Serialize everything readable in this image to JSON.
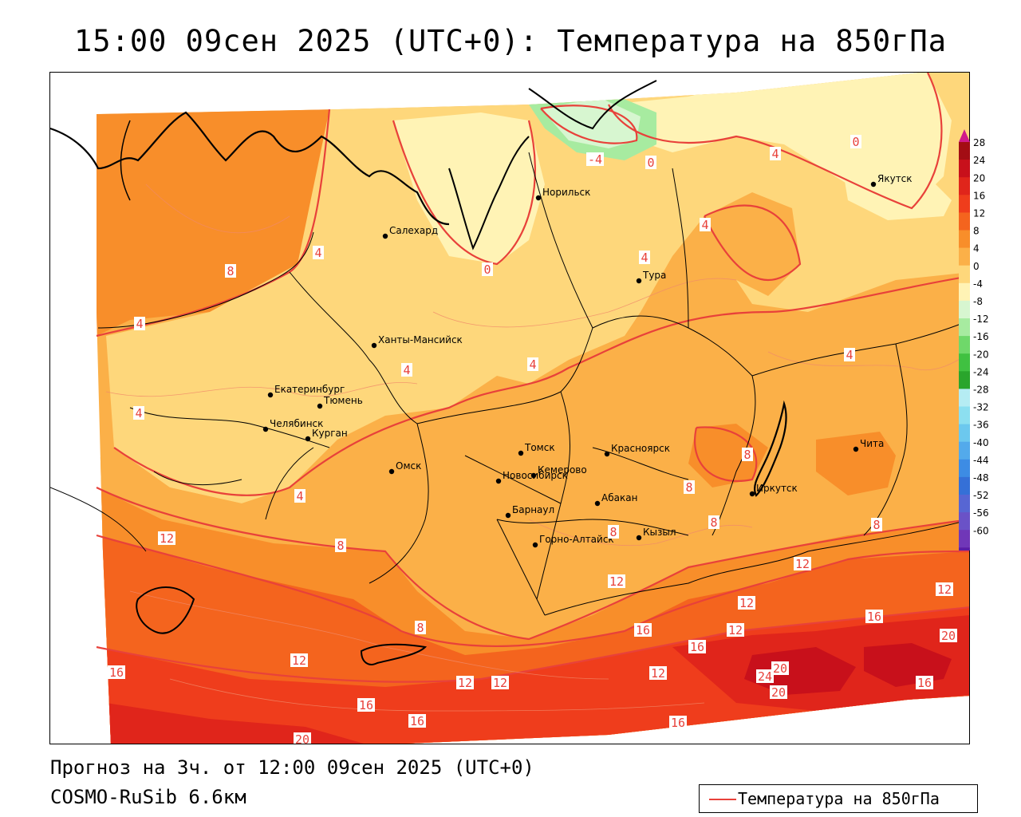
{
  "title": "15:00 09сен 2025 (UTC+0): Температура на 850гПа",
  "footer": {
    "forecast": "Прогноз на 3ч. от 12:00 09сен 2025 (UTC+0)",
    "model": "COSMO-RuSib 6.6км"
  },
  "legend": {
    "label": "Температура на 850гПа",
    "line_color": "#e8413a"
  },
  "colorbar": {
    "ticks": [
      "28",
      "24",
      "20",
      "16",
      "12",
      "8",
      "4",
      "0",
      "-4",
      "-8",
      "-12",
      "-16",
      "-20",
      "-24",
      "-28",
      "-32",
      "-36",
      "-40",
      "-44",
      "-48",
      "-52",
      "-56",
      "-60"
    ],
    "colors": [
      "#a30d14",
      "#c8101b",
      "#e0251b",
      "#ef3d1c",
      "#f4641e",
      "#f88e2a",
      "#fbb048",
      "#fed77b",
      "#fff3b5",
      "#d7f6d0",
      "#a7eba0",
      "#6fd86a",
      "#40c141",
      "#2aa52c",
      "#b5ecf3",
      "#8cdff0",
      "#6cc8ee",
      "#53aaeb",
      "#3d8ce4",
      "#3570d7",
      "#5766d3",
      "#6a52c7",
      "#7037b8",
      "#5b1da6",
      "#3b0e8f"
    ],
    "arrow_top_color": "#d01a8a",
    "arrow_bottom_color": "#8a2bd0"
  },
  "map": {
    "cities": [
      {
        "name": "Якутск"
      },
      {
        "name": "Норильск"
      },
      {
        "name": "Салехард"
      },
      {
        "name": "Тура"
      },
      {
        "name": "Ханты-Мансийск"
      },
      {
        "name": "Екатеринбург"
      },
      {
        "name": "Тюмень"
      },
      {
        "name": "Челябинск"
      },
      {
        "name": "Курган"
      },
      {
        "name": "Томск"
      },
      {
        "name": "Красноярск"
      },
      {
        "name": "Омск"
      },
      {
        "name": "Новосибирск"
      },
      {
        "name": "Кемерово"
      },
      {
        "name": "Барнаул"
      },
      {
        "name": "Абакан"
      },
      {
        "name": "Иркутск"
      },
      {
        "name": "Чита"
      },
      {
        "name": "Горно-Алтайск"
      },
      {
        "name": "Кызыл"
      }
    ],
    "isotherm_labels": [
      "-4",
      "0",
      "0",
      "4",
      "4",
      "4",
      "8",
      "0",
      "4",
      "4",
      "4",
      "4",
      "4",
      "4",
      "4",
      "8",
      "8",
      "8",
      "8",
      "8",
      "8",
      "8",
      "12",
      "12",
      "12",
      "12",
      "12",
      "12",
      "12",
      "12",
      "12",
      "12",
      "16",
      "16",
      "16",
      "16",
      "16",
      "16",
      "16",
      "16",
      "20",
      "20",
      "20",
      "24",
      "20"
    ]
  }
}
